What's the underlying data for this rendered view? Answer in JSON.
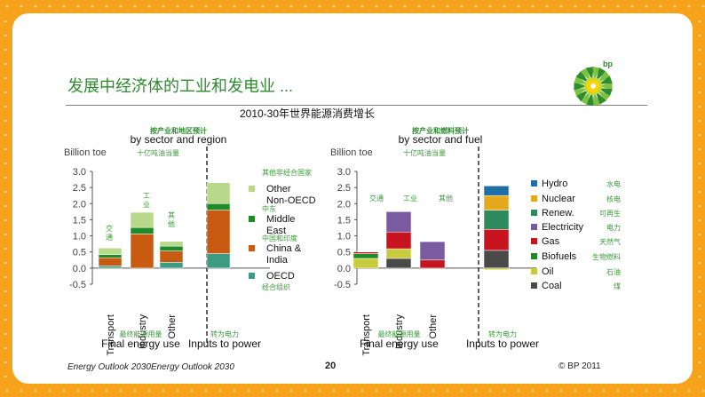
{
  "slide": {
    "title": "发展中经济体的工业和发电业 ...",
    "footer_left": "Energy Outlook 2030Energy Outlook 2030",
    "page_number": "20",
    "footer_right": "© BP 2011",
    "logo_text": "bp",
    "colors": {
      "frame": "#f7a21b",
      "title": "#2e8b2e",
      "annotation": "#3a9a3a"
    }
  },
  "chart_data": [
    {
      "type": "bar",
      "stacked": true,
      "overall_title": "2010-30年世界能源消费增长",
      "subtitle_cn": "按产业和地区预计",
      "subtitle": "by sector and region",
      "ylabel": "Billion toe",
      "ylabel_cn": "十亿吨油当量",
      "ylim": [
        -0.5,
        3.0
      ],
      "yticks": [
        "3.0",
        "2.5",
        "2.0",
        "1.5",
        "1.0",
        "0.5",
        "0.0",
        "-0.5"
      ],
      "grid": false,
      "categories": [
        "Transport",
        "Industry",
        "Other",
        ""
      ],
      "category_labels_cn": [
        "交通",
        "工业",
        "其他",
        ""
      ],
      "group_labels": [
        {
          "en": "Final energy use",
          "cn": "最终能源用量",
          "span": [
            0,
            2
          ]
        },
        {
          "en": "Inputs to power",
          "cn": "转为电力",
          "span": [
            3,
            3
          ]
        }
      ],
      "series": [
        {
          "name": "OECD",
          "name_cn": "经合组织",
          "color": "#3d9b82",
          "values": [
            0.07,
            0.0,
            0.18,
            0.45
          ]
        },
        {
          "name": "China & India",
          "name_cn": "中国和印度",
          "color": "#c85a12",
          "values": [
            0.25,
            1.06,
            0.35,
            1.35
          ]
        },
        {
          "name": "Middle East",
          "name_cn": "中东",
          "color": "#1f8a2a",
          "values": [
            0.1,
            0.2,
            0.15,
            0.2
          ]
        },
        {
          "name": "Other Non-OECD",
          "name_cn": "其他非经合国家",
          "color": "#b9d98a",
          "values": [
            0.2,
            0.47,
            0.15,
            0.65
          ]
        }
      ]
    },
    {
      "type": "bar",
      "stacked": true,
      "subtitle_cn": "按产业和燃料预计",
      "subtitle": "by sector and fuel",
      "ylabel": "Billion toe",
      "ylabel_cn": "十亿吨油当量",
      "ylim": [
        -0.5,
        3.0
      ],
      "yticks": [
        "3.0",
        "2.5",
        "2.0",
        "1.5",
        "1.0",
        "0.5",
        "0.0",
        "-0.5"
      ],
      "grid": false,
      "categories": [
        "Transport",
        "Industry",
        "Other",
        ""
      ],
      "category_labels_cn": [
        "交通",
        "工业",
        "其他",
        ""
      ],
      "group_labels": [
        {
          "en": "Final energy use",
          "cn": "最终能源用量",
          "span": [
            0,
            2
          ]
        },
        {
          "en": "Inputs to power",
          "cn": "转为电力",
          "span": [
            3,
            3
          ]
        }
      ],
      "series": [
        {
          "name": "Coal",
          "name_cn": "煤",
          "color": "#4a4a4a",
          "values": [
            0.0,
            0.3,
            0.0,
            0.55
          ]
        },
        {
          "name": "Oil",
          "name_cn": "石油",
          "color": "#c8cc3c",
          "values": [
            0.3,
            0.3,
            0.0,
            -0.05
          ]
        },
        {
          "name": "Biofuels",
          "name_cn": "生物燃料",
          "color": "#1e8a2a",
          "values": [
            0.15,
            0.0,
            0.0,
            0.0
          ]
        },
        {
          "name": "Gas",
          "name_cn": "天然气",
          "color": "#c8141e",
          "values": [
            0.05,
            0.52,
            0.25,
            0.65
          ]
        },
        {
          "name": "Electricity",
          "name_cn": "电力",
          "color": "#7a5aa0",
          "values": [
            0.0,
            0.63,
            0.57,
            0.0
          ]
        },
        {
          "name": "Renew.",
          "name_cn": "可再生",
          "color": "#2e8a5c",
          "values": [
            0.0,
            0.0,
            0.0,
            0.6
          ]
        },
        {
          "name": "Nuclear",
          "name_cn": "核电",
          "color": "#e6a81c",
          "values": [
            0.0,
            0.0,
            0.0,
            0.45
          ]
        },
        {
          "name": "Hydro",
          "name_cn": "水电",
          "color": "#1f6ea8",
          "values": [
            0.0,
            0.0,
            0.0,
            0.3
          ]
        }
      ]
    }
  ]
}
